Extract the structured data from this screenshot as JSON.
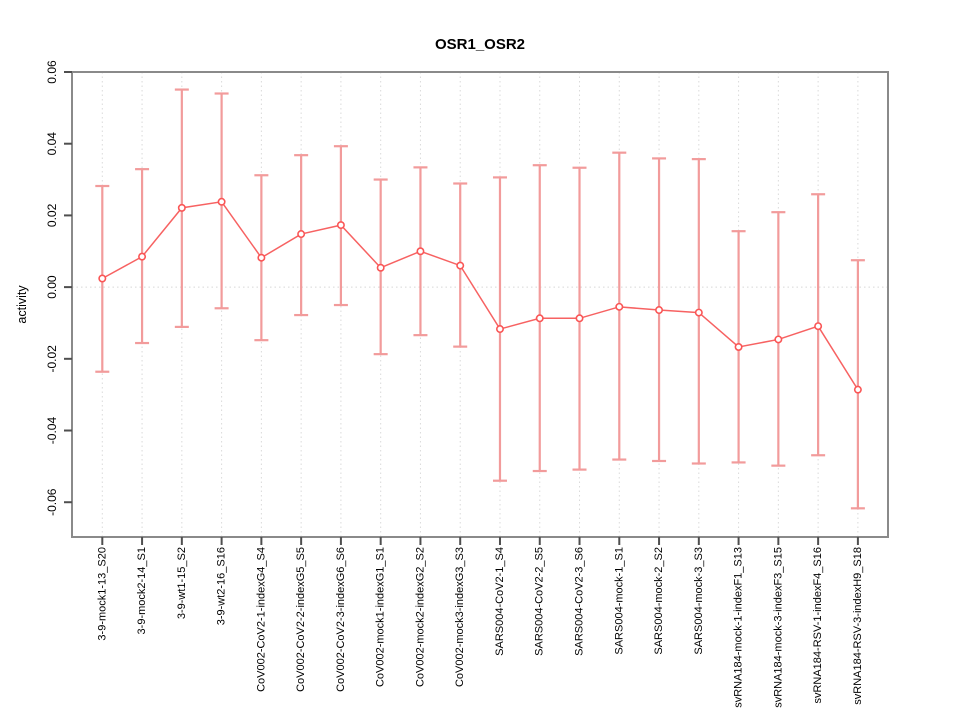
{
  "figure": {
    "background": "#ffffff"
  },
  "chart_data": {
    "type": "line",
    "subtype": "points-with-error-bars",
    "title": "OSR1_OSR2",
    "xlabel": "",
    "ylabel": "activity",
    "ylim": [
      -0.0697,
      0.06
    ],
    "yticks": [
      "0.06",
      "0.04",
      "0.02",
      "0.00",
      "-0.02",
      "-0.04",
      "-0.06"
    ],
    "grid": {
      "vertical": "dotted line at every category",
      "horizontal": "dotted line at y=0 only"
    },
    "legend": "none",
    "marker": "open-circle",
    "categories": [
      "3-9-mock1-13_S20",
      "3-9-mock2-14_S1",
      "3-9-wt1-15_S2",
      "3-9-wt2-16_S16",
      "CoV002-CoV2-1-indexG4_S4",
      "CoV002-CoV2-2-indexG5_S5",
      "CoV002-CoV2-3-indexG6_S6",
      "CoV002-mock1-indexG1_S1",
      "CoV002-mock2-indexG2_S2",
      "CoV002-mock3-indexG3_S3",
      "SARS004-CoV2-1_S4",
      "SARS004-CoV2-2_S5",
      "SARS004-CoV2-3_S6",
      "SARS004-mock-1_S1",
      "SARS004-mock-2_S2",
      "SARS004-mock-3_S3",
      "svRNA184-mock-1-indexF1_S13",
      "svRNA184-mock-3-indexF3_S15",
      "svRNA184-RSV-1-indexF4_S16",
      "svRNA184-RSV-3-indexH9_S18"
    ],
    "series": [
      {
        "name": "activity",
        "values": [
          0.0024,
          0.0085,
          0.0221,
          0.0238,
          0.0082,
          0.0148,
          0.0173,
          0.0054,
          0.01,
          0.006,
          -0.0117,
          -0.0087,
          -0.0087,
          -0.0055,
          -0.0064,
          -0.0071,
          -0.0167,
          -0.0146,
          -0.0109,
          -0.0286
        ],
        "upper": [
          0.0282,
          0.0329,
          0.0551,
          0.054,
          0.0312,
          0.0368,
          0.0393,
          0.03,
          0.0334,
          0.0289,
          0.0306,
          0.034,
          0.0333,
          0.0375,
          0.0359,
          0.0357,
          0.0156,
          0.0209,
          0.0259,
          0.0075
        ],
        "lower": [
          -0.0236,
          -0.0156,
          -0.0111,
          -0.0059,
          -0.0148,
          -0.0078,
          -0.005,
          -0.0187,
          -0.0134,
          -0.0166,
          -0.054,
          -0.0513,
          -0.0509,
          -0.0481,
          -0.0485,
          -0.0492,
          -0.0489,
          -0.0498,
          -0.0469,
          -0.0617
        ]
      }
    ],
    "colors": {
      "series_line": "#f76262",
      "marker_stroke": "#fa5656",
      "error_bar": "#f29b9b",
      "grid": "#dadada",
      "zero_line": "#d6d6d6",
      "box": "#8a8a8a",
      "tick": "#4f4f4f",
      "text": "#000000",
      "background": "#ffffff"
    }
  }
}
